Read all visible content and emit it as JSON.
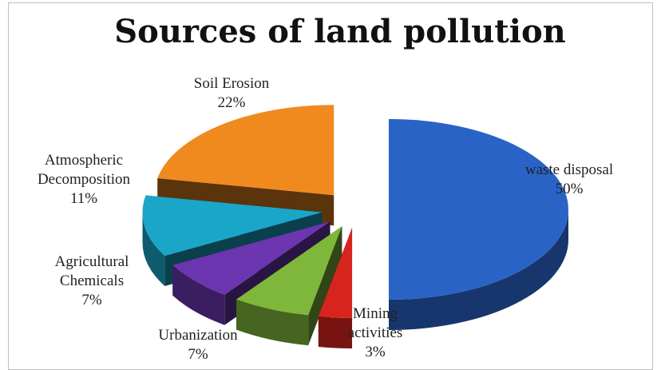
{
  "chart_data": {
    "type": "pie",
    "title": "Sources of land pollution",
    "slices": [
      {
        "label_lines": [
          "waste disposal"
        ],
        "pct_text": "50%",
        "value": 50,
        "color": "#2a63c6"
      },
      {
        "label_lines": [
          "Mining",
          "activities"
        ],
        "pct_text": "3%",
        "value": 3,
        "color": "#d8241f"
      },
      {
        "label_lines": [
          "Urbanization"
        ],
        "pct_text": "7%",
        "value": 7,
        "color": "#7fb73a"
      },
      {
        "label_lines": [
          "Agricultural",
          "Chemicals"
        ],
        "pct_text": "7%",
        "value": 7,
        "color": "#6b36b0"
      },
      {
        "label_lines": [
          "Atmospheric",
          "Decomposition"
        ],
        "pct_text": "11%",
        "value": 11,
        "color": "#1aa6c8"
      },
      {
        "label_lines": [
          "Soil Erosion"
        ],
        "pct_text": "22%",
        "value": 22,
        "color": "#f08a1e"
      }
    ],
    "style": "3d-exploded"
  }
}
